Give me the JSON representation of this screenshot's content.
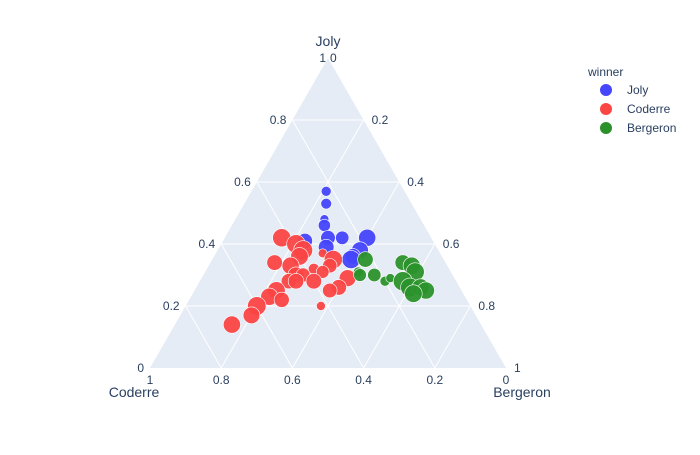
{
  "chart_data": {
    "type": "ternary-scatter",
    "axes": {
      "a": {
        "title": "Joly",
        "ticks": [
          "0.2",
          "0.4",
          "0.6",
          "0.8",
          "1"
        ],
        "tick_values": [
          0.2,
          0.4,
          0.6,
          0.8,
          1.0
        ]
      },
      "b": {
        "title": "Coderre",
        "ticks": [
          "0",
          "0.2",
          "0.4",
          "0.6",
          "0.8",
          "1"
        ],
        "tick_values": [
          0,
          0.2,
          0.4,
          0.6,
          0.8,
          1.0
        ]
      },
      "c": {
        "title": "Bergeron",
        "ticks": [
          "0",
          "0.2",
          "0.4",
          "0.6",
          "0.8",
          "1"
        ],
        "tick_values": [
          0,
          0.2,
          0.4,
          0.6,
          0.8,
          1.0
        ]
      }
    },
    "legend": {
      "title": "winner",
      "placement": "top-right",
      "entries": [
        {
          "name": "Joly",
          "color": "#4545fb"
        },
        {
          "name": "Coderre",
          "color": "#fb4545"
        },
        {
          "name": "Bergeron",
          "color": "#2b922b"
        }
      ]
    },
    "background_color": "#e5ecf6",
    "grid": true,
    "series": [
      {
        "name": "Joly",
        "color": "#4545fb",
        "points": [
          {
            "a": 0.57,
            "b": 0.22,
            "c": 0.21,
            "total": 1200
          },
          {
            "a": 0.53,
            "b": 0.24,
            "c": 0.23,
            "total": 1400
          },
          {
            "a": 0.48,
            "b": 0.27,
            "c": 0.25,
            "total": 1000
          },
          {
            "a": 0.46,
            "b": 0.28,
            "c": 0.26,
            "total": 1800
          },
          {
            "a": 0.41,
            "b": 0.36,
            "c": 0.23,
            "total": 2800
          },
          {
            "a": 0.42,
            "b": 0.29,
            "c": 0.29,
            "total": 2600
          },
          {
            "a": 0.39,
            "b": 0.31,
            "c": 0.3,
            "total": 3000
          },
          {
            "a": 0.42,
            "b": 0.25,
            "c": 0.33,
            "total": 2200
          },
          {
            "a": 0.42,
            "b": 0.18,
            "c": 0.4,
            "total": 3600
          },
          {
            "a": 0.38,
            "b": 0.22,
            "c": 0.4,
            "total": 3400
          },
          {
            "a": 0.36,
            "b": 0.25,
            "c": 0.39,
            "total": 3000
          },
          {
            "a": 0.35,
            "b": 0.26,
            "c": 0.39,
            "total": 4000
          }
        ]
      },
      {
        "name": "Coderre",
        "color": "#fb4545",
        "points": [
          {
            "a": 0.42,
            "b": 0.42,
            "c": 0.16,
            "total": 4000
          },
          {
            "a": 0.4,
            "b": 0.39,
            "c": 0.21,
            "total": 4200
          },
          {
            "a": 0.38,
            "b": 0.38,
            "c": 0.24,
            "total": 4400
          },
          {
            "a": 0.36,
            "b": 0.4,
            "c": 0.24,
            "total": 3800
          },
          {
            "a": 0.37,
            "b": 0.33,
            "c": 0.3,
            "total": 1000
          },
          {
            "a": 0.34,
            "b": 0.48,
            "c": 0.18,
            "total": 3000
          },
          {
            "a": 0.33,
            "b": 0.44,
            "c": 0.23,
            "total": 3600
          },
          {
            "a": 0.32,
            "b": 0.38,
            "c": 0.3,
            "total": 1500
          },
          {
            "a": 0.35,
            "b": 0.31,
            "c": 0.34,
            "total": 4000
          },
          {
            "a": 0.33,
            "b": 0.33,
            "c": 0.34,
            "total": 2500
          },
          {
            "a": 0.31,
            "b": 0.36,
            "c": 0.33,
            "total": 2000
          },
          {
            "a": 0.3,
            "b": 0.44,
            "c": 0.26,
            "total": 3200
          },
          {
            "a": 0.28,
            "b": 0.47,
            "c": 0.25,
            "total": 2800
          },
          {
            "a": 0.3,
            "b": 0.42,
            "c": 0.28,
            "total": 2400
          },
          {
            "a": 0.28,
            "b": 0.4,
            "c": 0.32,
            "total": 3000
          },
          {
            "a": 0.28,
            "b": 0.45,
            "c": 0.27,
            "total": 3000
          },
          {
            "a": 0.25,
            "b": 0.52,
            "c": 0.23,
            "total": 3800
          },
          {
            "a": 0.23,
            "b": 0.55,
            "c": 0.22,
            "total": 3600
          },
          {
            "a": 0.22,
            "b": 0.52,
            "c": 0.26,
            "total": 2800
          },
          {
            "a": 0.2,
            "b": 0.6,
            "c": 0.2,
            "total": 4200
          },
          {
            "a": 0.17,
            "b": 0.63,
            "c": 0.2,
            "total": 3400
          },
          {
            "a": 0.14,
            "b": 0.7,
            "c": 0.16,
            "total": 3600
          },
          {
            "a": 0.29,
            "b": 0.3,
            "c": 0.41,
            "total": 3400
          },
          {
            "a": 0.26,
            "b": 0.34,
            "c": 0.4,
            "total": 3000
          },
          {
            "a": 0.25,
            "b": 0.37,
            "c": 0.38,
            "total": 2600
          },
          {
            "a": 0.2,
            "b": 0.42,
            "c": 0.38,
            "total": 1000
          }
        ]
      },
      {
        "name": "Bergeron",
        "color": "#2b922b",
        "points": [
          {
            "a": 0.35,
            "b": 0.22,
            "c": 0.43,
            "total": 3000
          },
          {
            "a": 0.31,
            "b": 0.26,
            "c": 0.43,
            "total": 1200
          },
          {
            "a": 0.3,
            "b": 0.26,
            "c": 0.44,
            "total": 2000
          },
          {
            "a": 0.3,
            "b": 0.22,
            "c": 0.48,
            "total": 2200
          },
          {
            "a": 0.28,
            "b": 0.2,
            "c": 0.52,
            "total": 1200
          },
          {
            "a": 0.29,
            "b": 0.18,
            "c": 0.53,
            "total": 1000
          },
          {
            "a": 0.34,
            "b": 0.12,
            "c": 0.54,
            "total": 3000
          },
          {
            "a": 0.33,
            "b": 0.1,
            "c": 0.57,
            "total": 3600
          },
          {
            "a": 0.31,
            "b": 0.1,
            "c": 0.59,
            "total": 4000
          },
          {
            "a": 0.28,
            "b": 0.15,
            "c": 0.57,
            "total": 4400
          },
          {
            "a": 0.26,
            "b": 0.14,
            "c": 0.6,
            "total": 4200
          },
          {
            "a": 0.26,
            "b": 0.11,
            "c": 0.63,
            "total": 3600
          },
          {
            "a": 0.25,
            "b": 0.1,
            "c": 0.65,
            "total": 3600
          },
          {
            "a": 0.24,
            "b": 0.14,
            "c": 0.62,
            "total": 3800
          }
        ]
      }
    ]
  }
}
